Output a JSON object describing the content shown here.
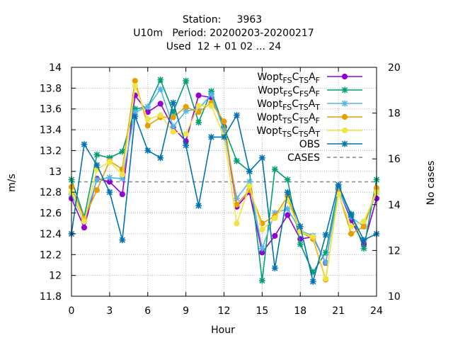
{
  "chart_data": {
    "type": "line",
    "title_lines": [
      "Station:     3963",
      "U10m   Period: 20200203-20200217",
      "Used  12 + 01 02 ... 24"
    ],
    "xlabel": "Hour",
    "ylabel": "m/s",
    "y2label": "No cases",
    "xlim": [
      0,
      24
    ],
    "ylim": [
      11.8,
      14.0
    ],
    "y2lim": [
      10,
      20
    ],
    "x_ticks": [
      0,
      3,
      6,
      9,
      12,
      15,
      18,
      21,
      24
    ],
    "y_ticks": [
      11.8,
      12,
      12.2,
      12.4,
      12.6,
      12.8,
      13,
      13.2,
      13.4,
      13.6,
      13.8,
      14
    ],
    "y_tick_labels": [
      "11.8",
      "12",
      "12.2",
      "12.4",
      "12.6",
      "12.8",
      "13",
      "13.2",
      "13.4",
      "13.6",
      "13.8",
      "14"
    ],
    "y2_ticks": [
      10,
      12,
      14,
      16,
      18,
      20
    ],
    "grid": true,
    "legend_position": "top-right",
    "x": [
      0,
      1,
      2,
      3,
      4,
      5,
      6,
      7,
      8,
      9,
      10,
      11,
      12,
      13,
      14,
      15,
      16,
      17,
      18,
      19,
      20,
      21,
      22,
      23,
      24
    ],
    "series": [
      {
        "legend": {
          "main": "Wopt",
          "parts": [
            [
              "FS",
              "sub"
            ],
            [
              "C",
              ""
            ],
            [
              "TS",
              "sub"
            ],
            [
              "A",
              ""
            ],
            [
              "F",
              "sub"
            ]
          ]
        },
        "color": "#9400d3",
        "marker": "circle",
        "values": [
          12.74,
          12.46,
          12.93,
          12.9,
          12.78,
          13.73,
          13.57,
          13.65,
          13.42,
          13.29,
          13.73,
          13.71,
          13.43,
          12.66,
          12.8,
          12.22,
          12.38,
          12.58,
          12.35,
          12.37,
          12.12,
          12.83,
          12.53,
          12.3,
          12.74
        ]
      },
      {
        "legend": {
          "main": "Wopt",
          "parts": [
            [
              "FS",
              "sub"
            ],
            [
              "C",
              ""
            ],
            [
              "FS",
              "sub"
            ],
            [
              "A",
              ""
            ],
            [
              "F",
              "sub"
            ]
          ]
        },
        "color": "#009e73",
        "marker": "star",
        "values": [
          12.92,
          12.56,
          13.16,
          13.13,
          13.19,
          13.6,
          13.62,
          13.88,
          13.57,
          13.87,
          13.47,
          13.77,
          13.42,
          13.1,
          13.0,
          11.95,
          13.02,
          12.92,
          12.3,
          12.03,
          12.22,
          12.84,
          12.59,
          12.26,
          12.92
        ]
      },
      {
        "legend": {
          "main": "Wopt",
          "parts": [
            [
              "FS",
              "sub"
            ],
            [
              "C",
              ""
            ],
            [
              "TS",
              "sub"
            ],
            [
              "A",
              ""
            ],
            [
              "T",
              "sub"
            ]
          ]
        },
        "color": "#56b4e9",
        "marker": "star",
        "values": [
          12.78,
          12.52,
          12.92,
          12.94,
          12.93,
          13.57,
          13.62,
          13.79,
          13.43,
          13.58,
          13.6,
          13.74,
          13.39,
          12.74,
          12.9,
          12.26,
          12.6,
          12.64,
          12.43,
          12.38,
          12.12,
          12.82,
          12.56,
          12.47,
          12.8
        ]
      },
      {
        "legend": {
          "main": "Wopt",
          "parts": [
            [
              "TS",
              "sub"
            ],
            [
              "C",
              ""
            ],
            [
              "TS",
              "sub"
            ],
            [
              "A",
              ""
            ],
            [
              "F",
              "sub"
            ]
          ]
        },
        "color": "#e69f00",
        "marker": "circle",
        "values": [
          12.85,
          12.55,
          12.82,
          13.1,
          13.02,
          13.87,
          13.44,
          13.52,
          13.52,
          13.62,
          13.57,
          13.66,
          13.48,
          12.68,
          12.82,
          12.5,
          12.57,
          12.76,
          12.42,
          12.35,
          11.96,
          12.8,
          12.4,
          12.47,
          12.84
        ]
      },
      {
        "legend": {
          "main": "Wopt",
          "parts": [
            [
              "TS",
              "sub"
            ],
            [
              "C",
              ""
            ],
            [
              "TS",
              "sub"
            ],
            [
              "A",
              ""
            ],
            [
              "T",
              "sub"
            ]
          ]
        },
        "color": "#f0e442",
        "marker": "circle",
        "values": [
          12.8,
          12.52,
          13.02,
          13.09,
          12.97,
          13.82,
          13.5,
          13.54,
          13.38,
          13.36,
          13.63,
          13.63,
          13.34,
          12.5,
          12.86,
          12.44,
          12.55,
          12.72,
          12.42,
          12.37,
          11.97,
          12.78,
          12.47,
          12.52,
          12.8
        ]
      },
      {
        "legend": {
          "main": "OBS",
          "parts": []
        },
        "color": "#0072b2",
        "marker": "star",
        "values": [
          12.4,
          13.26,
          13.06,
          12.8,
          12.34,
          13.53,
          13.2,
          13.13,
          13.66,
          13.25,
          12.67,
          13.33,
          13.33,
          13.54,
          13.0,
          13.13,
          12.07,
          12.8,
          12.47,
          11.94,
          12.39,
          12.87,
          12.58,
          12.34,
          12.4
        ]
      }
    ],
    "cases": {
      "legend": "CASES",
      "value": 15,
      "axis": "y2",
      "color": "#888888",
      "style": "dashed"
    }
  }
}
